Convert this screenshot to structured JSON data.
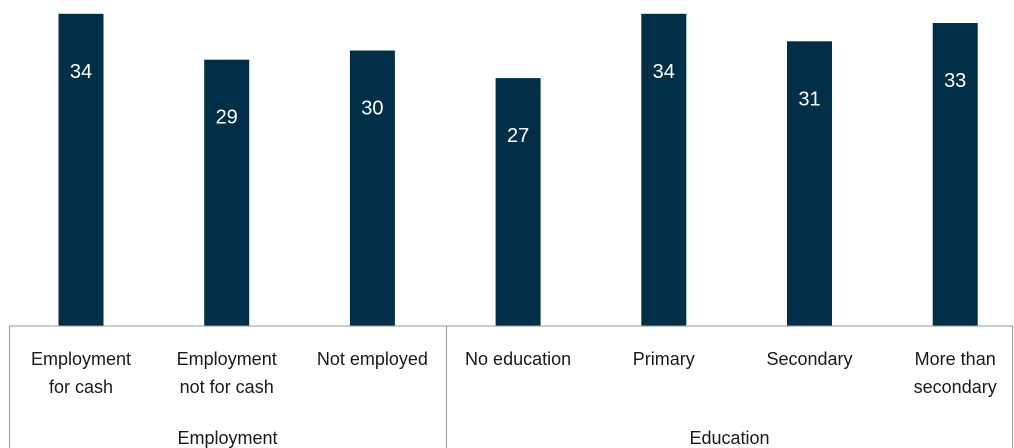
{
  "colors": {
    "bar": "#002f47",
    "bar_label": "#ffffff",
    "axis": "#9a9a9a",
    "text": "#1a1a1a"
  },
  "chart_data": {
    "type": "bar",
    "title": "",
    "xlabel": "",
    "ylabel": "",
    "ylim": [
      0,
      35.5
    ],
    "grid": false,
    "groups": [
      {
        "name": "Employment",
        "category_count": 3
      },
      {
        "name": "Education",
        "category_count": 4
      }
    ],
    "categories": [
      [
        "Employment",
        "for cash"
      ],
      [
        "Employment",
        "not for cash"
      ],
      [
        "Not employed"
      ],
      [
        "No education"
      ],
      [
        "Primary"
      ],
      [
        "Secondary"
      ],
      [
        "More than",
        "secondary"
      ]
    ],
    "values": [
      34,
      29,
      30,
      27,
      34,
      31,
      33
    ]
  }
}
